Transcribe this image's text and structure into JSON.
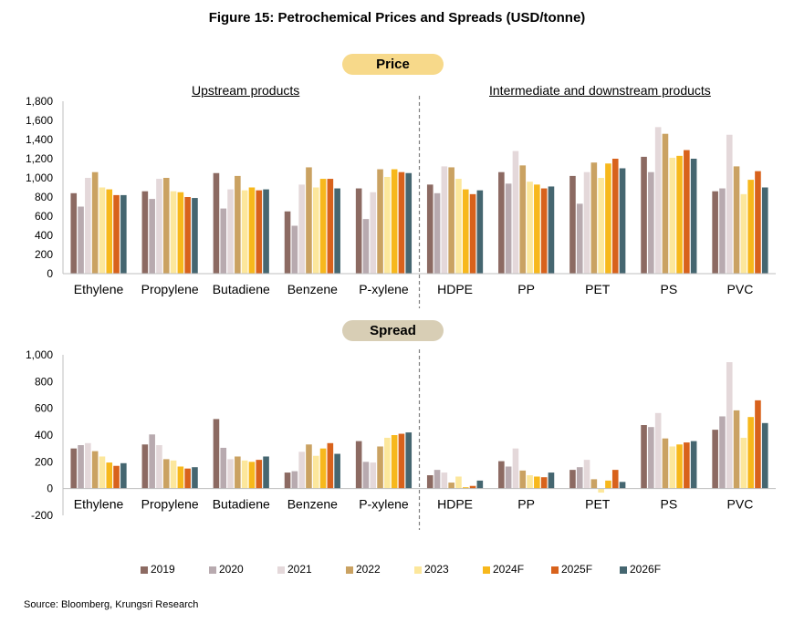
{
  "title": "Figure 15: Petrochemical Prices and Spreads (USD/tonne)",
  "source": "Source: Bloomberg, Krungsri Research",
  "panels": {
    "price_label": "Price",
    "spread_label": "Spread"
  },
  "group_labels": {
    "upstream": "Upstream products",
    "downstream": "Intermediate and downstream products"
  },
  "legend": [
    {
      "name": "2019",
      "color": "#8c6a62"
    },
    {
      "name": "2020",
      "color": "#b8aaaf"
    },
    {
      "name": "2021",
      "color": "#e4d8da"
    },
    {
      "name": "2022",
      "color": "#caa262"
    },
    {
      "name": "2023",
      "color": "#fce79c"
    },
    {
      "name": "2024F",
      "color": "#f7b81c"
    },
    {
      "name": "2025F",
      "color": "#d8621c"
    },
    {
      "name": "2026F",
      "color": "#456670"
    }
  ],
  "chart_data": [
    {
      "type": "bar",
      "title": "Price",
      "categories": [
        "Ethylene",
        "Propylene",
        "Butadiene",
        "Benzene",
        "P-xylene",
        "HDPE",
        "PP",
        "PET",
        "PS",
        "PVC"
      ],
      "ylim": [
        0,
        1800
      ],
      "yticks": [
        "0",
        "200",
        "400",
        "600",
        "800",
        "1,000",
        "1,200",
        "1,400",
        "1,600",
        "1,800"
      ],
      "series": [
        {
          "name": "2019",
          "values": [
            840,
            860,
            1050,
            650,
            890,
            930,
            1060,
            1020,
            1220,
            860
          ]
        },
        {
          "name": "2020",
          "values": [
            700,
            780,
            680,
            500,
            570,
            840,
            940,
            730,
            1060,
            890
          ]
        },
        {
          "name": "2021",
          "values": [
            1000,
            990,
            880,
            930,
            850,
            1120,
            1280,
            1060,
            1530,
            1450
          ]
        },
        {
          "name": "2022",
          "values": [
            1060,
            1000,
            1020,
            1110,
            1090,
            1110,
            1130,
            1160,
            1460,
            1120
          ]
        },
        {
          "name": "2023",
          "values": [
            900,
            860,
            870,
            900,
            1010,
            990,
            960,
            1000,
            1210,
            830
          ]
        },
        {
          "name": "2024F",
          "values": [
            880,
            850,
            900,
            990,
            1090,
            880,
            930,
            1150,
            1230,
            980
          ]
        },
        {
          "name": "2025F",
          "values": [
            820,
            800,
            870,
            990,
            1060,
            830,
            890,
            1200,
            1290,
            1070
          ]
        },
        {
          "name": "2026F",
          "values": [
            820,
            790,
            880,
            890,
            1050,
            870,
            910,
            1100,
            1200,
            900
          ]
        }
      ]
    },
    {
      "type": "bar",
      "title": "Spread",
      "categories": [
        "Ethylene",
        "Propylene",
        "Butadiene",
        "Benzene",
        "P-xylene",
        "HDPE",
        "PP",
        "PET",
        "PS",
        "PVC"
      ],
      "ylim": [
        -200,
        1000
      ],
      "yticks": [
        "-200",
        "0",
        "200",
        "400",
        "600",
        "800",
        "1,000"
      ],
      "series": [
        {
          "name": "2019",
          "values": [
            300,
            330,
            520,
            120,
            355,
            100,
            205,
            140,
            475,
            440
          ]
        },
        {
          "name": "2020",
          "values": [
            325,
            405,
            305,
            130,
            200,
            140,
            165,
            160,
            460,
            540
          ]
        },
        {
          "name": "2021",
          "values": [
            340,
            325,
            220,
            275,
            195,
            120,
            300,
            215,
            565,
            945
          ]
        },
        {
          "name": "2022",
          "values": [
            280,
            220,
            240,
            330,
            315,
            45,
            135,
            70,
            375,
            585
          ]
        },
        {
          "name": "2023",
          "values": [
            240,
            210,
            210,
            245,
            380,
            90,
            100,
            -30,
            315,
            380
          ]
        },
        {
          "name": "2024F",
          "values": [
            195,
            165,
            200,
            300,
            400,
            10,
            90,
            60,
            330,
            535
          ]
        },
        {
          "name": "2025F",
          "values": [
            170,
            150,
            215,
            340,
            410,
            20,
            85,
            140,
            345,
            660
          ]
        },
        {
          "name": "2026F",
          "values": [
            190,
            160,
            240,
            260,
            420,
            60,
            120,
            50,
            355,
            490
          ]
        }
      ]
    }
  ]
}
